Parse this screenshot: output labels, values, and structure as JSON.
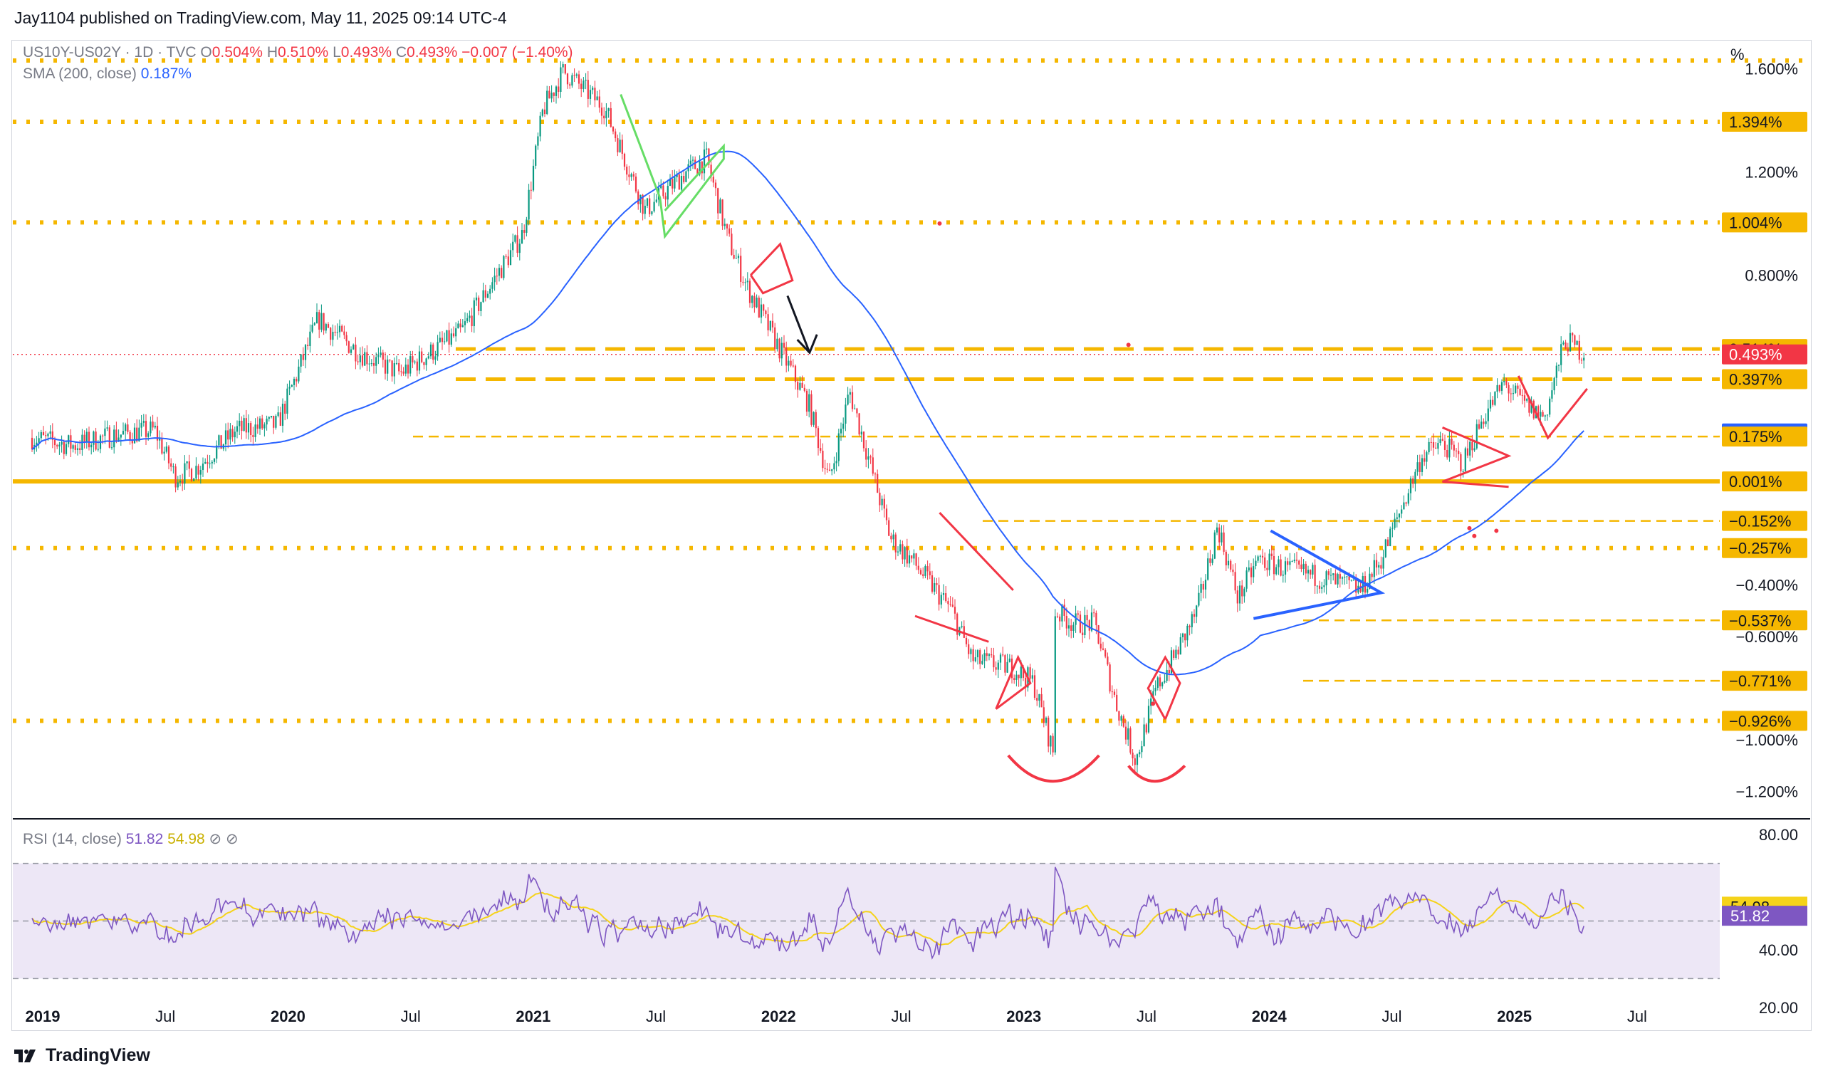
{
  "header": {
    "published": "Jay1104 published on TradingView.com, May 11, 2025 09:14 UTC-4"
  },
  "legend": {
    "symbol": "US10Y-US02Y · 1D · TVC",
    "o_label": "O",
    "o_value": "0.504%",
    "h_label": "H",
    "h_value": "0.510%",
    "l_label": "L",
    "l_value": "0.493%",
    "c_label": "C",
    "c_value": "0.493%",
    "change": "−0.007 (−1.40%)",
    "sma_label": "SMA (200, close)",
    "sma_value": "0.187%",
    "rsi_label": "RSI (14, close)",
    "rsi_value": "51.82",
    "rsi_ma_value": "54.98"
  },
  "unit_label": "%",
  "footer": {
    "brand": "TradingView"
  },
  "colors": {
    "up": "#089981",
    "down": "#f23645",
    "sma": "#2962ff",
    "level": "#f5b700",
    "rsi": "#7e57c2",
    "rsi_ma": "#f5d31a",
    "rsi_band": "#ede7f6"
  },
  "chart_data": {
    "type": "candlestick",
    "title": "US10Y-US02Y · 1D · TVC",
    "y_scale": {
      "unit": "%",
      "range": [
        -1.3,
        1.7
      ]
    },
    "y_ticks": [
      "1.600%",
      "1.200%",
      "0.800%",
      "−0.400%",
      "−0.600%",
      "−1.000%",
      "−1.200%"
    ],
    "x_ticks": [
      "2019",
      "Jul",
      "2020",
      "Jul",
      "2021",
      "Jul",
      "2022",
      "Jul",
      "2023",
      "Jul",
      "2024",
      "Jul",
      "2025",
      "Jul"
    ],
    "price_path": [
      [
        "2019-01",
        0.17
      ],
      [
        "2019-03",
        0.14
      ],
      [
        "2019-05",
        0.18
      ],
      [
        "2019-07",
        0.2
      ],
      [
        "2019-08",
        0.02
      ],
      [
        "2019-09",
        0.05
      ],
      [
        "2019-11",
        0.2
      ],
      [
        "2020-01",
        0.22
      ],
      [
        "2020-03",
        0.63
      ],
      [
        "2020-05",
        0.5
      ],
      [
        "2020-07",
        0.42
      ],
      [
        "2020-10",
        0.58
      ],
      [
        "2021-01",
        0.96
      ],
      [
        "2021-02",
        1.44
      ],
      [
        "2021-03",
        1.59
      ],
      [
        "2021-05",
        1.45
      ],
      [
        "2021-07",
        1.05
      ],
      [
        "2021-09",
        1.2
      ],
      [
        "2021-10",
        1.25
      ],
      [
        "2021-11",
        0.95
      ],
      [
        "2021-12",
        0.75
      ],
      [
        "2022-03",
        0.3
      ],
      [
        "2022-04",
        0.0
      ],
      [
        "2022-05",
        0.35
      ],
      [
        "2022-06",
        0.07
      ],
      [
        "2022-07",
        -0.22
      ],
      [
        "2022-08",
        -0.3
      ],
      [
        "2022-10",
        -0.5
      ],
      [
        "2022-11",
        -0.69
      ],
      [
        "2023-01",
        -0.72
      ],
      [
        "2023-02",
        -0.78
      ],
      [
        "2023-03",
        -1.06
      ],
      [
        "2023-03",
        -0.5
      ],
      [
        "2023-04",
        -0.55
      ],
      [
        "2023-05",
        -0.55
      ],
      [
        "2023-06",
        -0.85
      ],
      [
        "2023-07",
        -1.08
      ],
      [
        "2023-08",
        -0.8
      ],
      [
        "2023-09",
        -0.66
      ],
      [
        "2023-10",
        -0.5
      ],
      [
        "2023-11",
        -0.17
      ],
      [
        "2023-12",
        -0.45
      ],
      [
        "2024-01",
        -0.3
      ],
      [
        "2024-02",
        -0.33
      ],
      [
        "2024-04",
        -0.37
      ],
      [
        "2024-06",
        -0.42
      ],
      [
        "2024-07",
        -0.3
      ],
      [
        "2024-08",
        -0.1
      ],
      [
        "2024-09",
        0.1
      ],
      [
        "2024-10",
        0.15
      ],
      [
        "2024-11",
        0.07
      ],
      [
        "2024-12",
        0.25
      ],
      [
        "2025-01",
        0.38
      ],
      [
        "2025-02",
        0.3
      ],
      [
        "2025-03",
        0.25
      ],
      [
        "2025-04",
        0.55
      ],
      [
        "2025-05",
        0.493
      ]
    ],
    "series": [
      {
        "name": "SMA (200, close)",
        "last": 0.187
      },
      {
        "name": "RSI (14, close)",
        "last": 51.82
      },
      {
        "name": "RSI MA",
        "last": 54.98
      }
    ],
    "levels": [
      1.394,
      1.004,
      0.514,
      0.397,
      0.175,
      0.001,
      -0.152,
      -0.257,
      -0.537,
      -0.771,
      -0.926
    ],
    "price_labels": [
      {
        "value": 1.394,
        "text": "1.394%",
        "kind": "level"
      },
      {
        "value": 1.004,
        "text": "1.004%",
        "kind": "level"
      },
      {
        "value": 0.514,
        "text": "0.514%",
        "kind": "level"
      },
      {
        "value": 0.493,
        "text": "0.493%",
        "kind": "last"
      },
      {
        "value": 0.397,
        "text": "0.397%",
        "kind": "level"
      },
      {
        "value": 0.187,
        "text": "0.187%",
        "kind": "sma"
      },
      {
        "value": 0.175,
        "text": "0.175%",
        "kind": "level"
      },
      {
        "value": 0.001,
        "text": "0.001%",
        "kind": "level"
      },
      {
        "value": -0.152,
        "text": "−0.152%",
        "kind": "level"
      },
      {
        "value": -0.257,
        "text": "−0.257%",
        "kind": "level"
      },
      {
        "value": -0.537,
        "text": "−0.537%",
        "kind": "level"
      },
      {
        "value": -0.771,
        "text": "−0.771%",
        "kind": "level"
      },
      {
        "value": -0.926,
        "text": "−0.926%",
        "kind": "level"
      }
    ],
    "rsi_ticks": [
      "80.00",
      "40.00",
      "20.00"
    ],
    "rsi_range": [
      15,
      85
    ],
    "rsi_band": [
      30,
      70
    ]
  }
}
